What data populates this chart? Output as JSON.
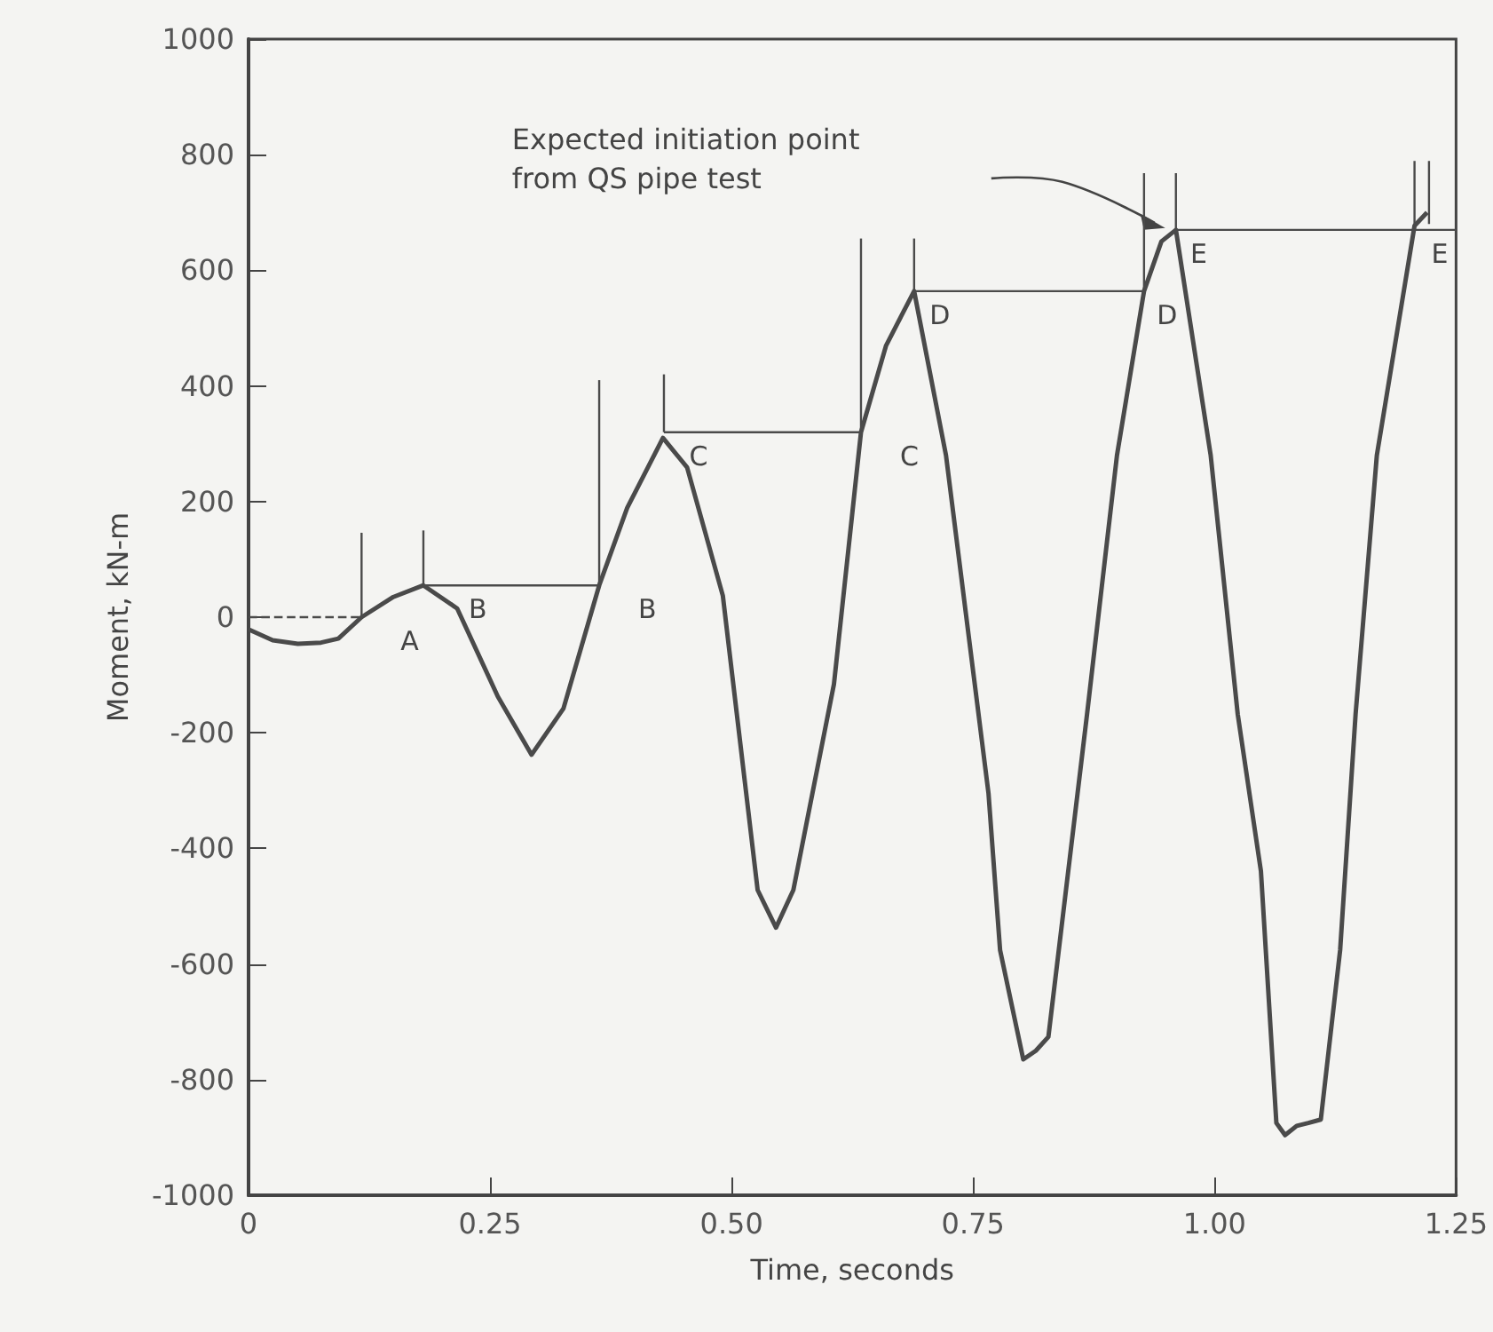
{
  "chart_data": {
    "type": "line",
    "xlabel": "Time, seconds",
    "ylabel": "Moment, kN-m",
    "xlim": [
      0,
      1.25
    ],
    "ylim": [
      -1000,
      1000
    ],
    "xticks": [
      0,
      {
        "value": 0.25,
        "label": "0.25"
      },
      {
        "value": 0.5,
        "label": "0.50"
      },
      {
        "value": 0.75,
        "label": "0.75"
      },
      {
        "value": 1,
        "label": "1.00"
      },
      {
        "value": 1.25,
        "label": "1.25"
      }
    ],
    "yticks": [
      -1000,
      -800,
      -600,
      -400,
      -200,
      0,
      200,
      400,
      600,
      800,
      1000
    ],
    "grid": false,
    "marker": "none",
    "line_style": "solid",
    "series": [
      {
        "color": "#4a4a4a",
        "x": [
          0,
          0.025,
          0.051,
          0.075,
          0.093,
          0.117,
          0.15,
          0.181,
          0.216,
          0.258,
          0.293,
          0.326,
          0.363,
          0.392,
          0.429,
          0.454,
          0.491,
          0.527,
          0.546,
          0.564,
          0.606,
          0.634,
          0.66,
          0.689,
          0.722,
          0.766,
          0.778,
          0.802,
          0.815,
          0.828,
          0.868,
          0.899,
          0.927,
          0.945,
          0.96,
          0.996,
          1.024,
          1.048,
          1.064,
          1.073,
          1.085,
          1.097,
          1.11,
          1.13,
          1.146,
          1.168,
          1.207,
          1.22
        ],
        "values": [
          -21,
          -40,
          -46,
          -44,
          -37,
          0,
          35,
          55,
          15,
          -137,
          -238,
          -158,
          55,
          189,
          310,
          259,
          37,
          -472,
          -537,
          -472,
          -116,
          320,
          470,
          564,
          280,
          -305,
          -576,
          -765,
          -750,
          -726,
          -168,
          280,
          564,
          650,
          670,
          280,
          -168,
          -439,
          -875,
          -896,
          -880,
          -875,
          -869,
          -576,
          -168,
          280,
          677,
          700
        ]
      },
      {
        "color": "#4a4a4a",
        "line_style": "dashed",
        "x": [
          0,
          0.117
        ],
        "values": [
          0,
          0
        ]
      },
      {
        "color": "#4a4a4a",
        "x": [
          0.181,
          0.363
        ],
        "values": [
          55,
          55
        ]
      },
      {
        "color": "#4a4a4a",
        "x": [
          0.43,
          0.634
        ],
        "values": [
          320,
          320
        ]
      },
      {
        "color": "#4a4a4a",
        "x": [
          0.689,
          0.927
        ],
        "values": [
          564,
          564
        ]
      },
      {
        "color": "#4a4a4a",
        "x": [
          0.96,
          1.25
        ],
        "values": [
          670,
          670
        ]
      },
      {
        "color": "#4a4a4a",
        "x": [
          0.117,
          0.117
        ],
        "values": [
          0,
          146
        ]
      },
      {
        "color": "#4a4a4a",
        "x": [
          0.181,
          0.181
        ],
        "values": [
          55,
          150
        ]
      },
      {
        "color": "#4a4a4a",
        "x": [
          0.363,
          0.363
        ],
        "values": [
          55,
          410
        ]
      },
      {
        "color": "#4a4a4a",
        "x": [
          0.43,
          0.43
        ],
        "values": [
          320,
          420
        ]
      },
      {
        "color": "#4a4a4a",
        "x": [
          0.634,
          0.634
        ],
        "values": [
          320,
          655
        ]
      },
      {
        "color": "#4a4a4a",
        "x": [
          0.689,
          0.689
        ],
        "values": [
          564,
          655
        ]
      },
      {
        "color": "#4a4a4a",
        "x": [
          0.927,
          0.927
        ],
        "values": [
          564,
          768
        ]
      },
      {
        "color": "#4a4a4a",
        "x": [
          0.96,
          0.96
        ],
        "values": [
          670,
          768
        ]
      },
      {
        "color": "#4a4a4a",
        "x": [
          1.207,
          1.207
        ],
        "values": [
          677,
          789
        ]
      },
      {
        "color": "#4a4a4a",
        "x": [
          1.222,
          1.222
        ],
        "values": [
          680,
          789
        ]
      }
    ],
    "annotations": [
      "Expected initiation point\nfrom QS pipe test",
      {
        "text": "A",
        "x": 0.117,
        "y": 0
      },
      {
        "text": "B",
        "x": 0.181,
        "y": 55
      },
      {
        "text": "B",
        "x": 0.363,
        "y": 55
      },
      {
        "text": "C",
        "x": 0.43,
        "y": 320
      },
      {
        "text": "C",
        "x": 0.634,
        "y": 320
      },
      {
        "text": "D",
        "x": 0.689,
        "y": 564
      },
      {
        "text": "D",
        "x": 0.927,
        "y": 564
      },
      {
        "text": "E",
        "x": 0.96,
        "y": 670
      },
      {
        "text": "E",
        "x": 1.207,
        "y": 670
      }
    ]
  }
}
